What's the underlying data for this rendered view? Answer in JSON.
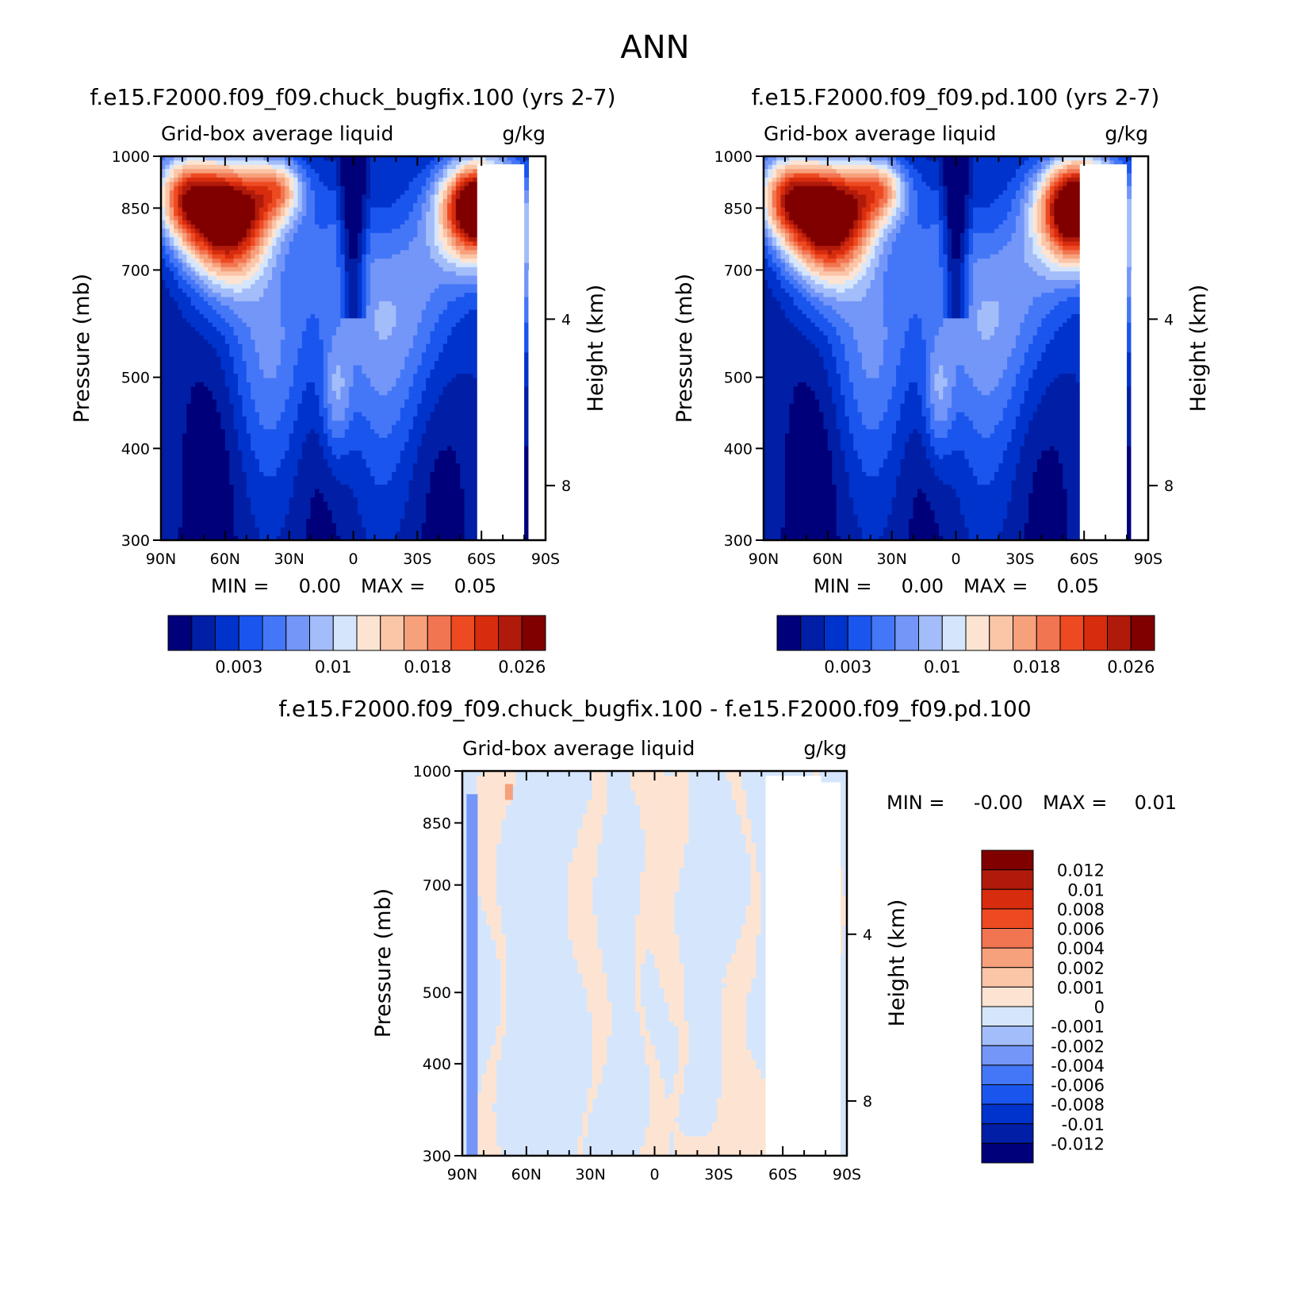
{
  "figure": {
    "title": "ANN"
  },
  "colors": {
    "abs_scale": [
      "#00007a",
      "#001fa6",
      "#0033cc",
      "#1a55ee",
      "#4477f7",
      "#7396f8",
      "#a3bdfa",
      "#d5e6fc",
      "#fde4d2",
      "#fbc5a8",
      "#f7a07c",
      "#f27551",
      "#ee4a22",
      "#d82c0e",
      "#b01a0a",
      "#800000"
    ],
    "diff_scale": [
      "#800000",
      "#b01a0a",
      "#d82c0e",
      "#ee4a22",
      "#f27551",
      "#f7a07c",
      "#fbc5a8",
      "#fde4d2",
      "#d5e6fc",
      "#a3bdfa",
      "#7396f8",
      "#4477f7",
      "#1a55ee",
      "#0033cc",
      "#001fa6",
      "#00007a"
    ]
  },
  "chart_data": [
    {
      "id": "panel_a",
      "type": "heatmap",
      "title": "f.e15.F2000.f09_f09.chuck_bugfix.100 (yrs 2-7)",
      "subtitle_left": "Grid-box average liquid",
      "subtitle_right": "g/kg",
      "ylabel": "Pressure (mb)",
      "ylabel_right": "Height (km)",
      "x_ticks": [
        "90N",
        "60N",
        "30N",
        "0",
        "30S",
        "60S",
        "90S"
      ],
      "x_tick_values": [
        90,
        60,
        30,
        0,
        -30,
        -60,
        -90
      ],
      "y_ticks": [
        "300",
        "400",
        "500",
        "700",
        "850",
        "1000"
      ],
      "y_tick_values": [
        300,
        400,
        500,
        700,
        850,
        1000
      ],
      "ylim": [
        1000,
        300
      ],
      "y_log_scale": true,
      "right_ticks": [
        "8",
        "4"
      ],
      "right_tick_pressures": [
        356,
        600
      ],
      "min_label": "MIN =",
      "min_value": "0.00",
      "max_label": "MAX =",
      "max_value": "0.05",
      "colorbar": {
        "orientation": "horizontal",
        "tick_labels": [
          "0.003",
          "0.01",
          "0.018",
          "0.026"
        ],
        "tick_boundary_index": [
          3,
          7,
          11,
          15
        ]
      },
      "blobs": [
        {
          "lat": 80,
          "p": 880,
          "sx": 14,
          "sp": 120,
          "a": 0.55
        },
        {
          "lat": 58,
          "p": 830,
          "sx": 20,
          "sp": 145,
          "a": 1.0
        },
        {
          "lat": 35,
          "p": 900,
          "sx": 12,
          "sp": 90,
          "a": 0.45
        },
        {
          "lat": -58,
          "p": 850,
          "sx": 16,
          "sp": 130,
          "a": 1.12
        },
        {
          "lat": -15,
          "p": 620,
          "sx": 30,
          "sp": 240,
          "a": 0.3
        },
        {
          "lat": 8,
          "p": 470,
          "sx": 7,
          "sp": 90,
          "a": 0.22
        },
        {
          "lat": -75,
          "p": 700,
          "sx": 10,
          "sp": 200,
          "a": 0.3
        },
        {
          "lat": 40,
          "p": 560,
          "sx": 20,
          "sp": 200,
          "a": 0.22
        }
      ]
    },
    {
      "id": "panel_b",
      "type": "heatmap",
      "title": "f.e15.F2000.f09_f09.pd.100 (yrs 2-7)",
      "subtitle_left": "Grid-box average liquid",
      "subtitle_right": "g/kg",
      "ylabel": "Pressure (mb)",
      "ylabel_right": "Height (km)",
      "x_ticks": [
        "90N",
        "60N",
        "30N",
        "0",
        "30S",
        "60S",
        "90S"
      ],
      "x_tick_values": [
        90,
        60,
        30,
        0,
        -30,
        -60,
        -90
      ],
      "y_ticks": [
        "300",
        "400",
        "500",
        "700",
        "850",
        "1000"
      ],
      "y_tick_values": [
        300,
        400,
        500,
        700,
        850,
        1000
      ],
      "ylim": [
        1000,
        300
      ],
      "y_log_scale": true,
      "right_ticks": [
        "8",
        "4"
      ],
      "right_tick_pressures": [
        356,
        600
      ],
      "min_label": "MIN =",
      "min_value": "0.00",
      "max_label": "MAX =",
      "max_value": "0.05",
      "colorbar": {
        "orientation": "horizontal",
        "tick_labels": [
          "0.003",
          "0.01",
          "0.018",
          "0.026"
        ],
        "tick_boundary_index": [
          3,
          7,
          11,
          15
        ]
      },
      "blobs": [
        {
          "lat": 80,
          "p": 880,
          "sx": 14,
          "sp": 120,
          "a": 0.55
        },
        {
          "lat": 58,
          "p": 830,
          "sx": 20,
          "sp": 145,
          "a": 1.0
        },
        {
          "lat": 35,
          "p": 900,
          "sx": 12,
          "sp": 90,
          "a": 0.45
        },
        {
          "lat": -57,
          "p": 850,
          "sx": 17,
          "sp": 135,
          "a": 1.15
        },
        {
          "lat": -15,
          "p": 620,
          "sx": 30,
          "sp": 240,
          "a": 0.3
        },
        {
          "lat": 8,
          "p": 470,
          "sx": 7,
          "sp": 90,
          "a": 0.22
        },
        {
          "lat": -75,
          "p": 700,
          "sx": 10,
          "sp": 200,
          "a": 0.3
        },
        {
          "lat": 40,
          "p": 560,
          "sx": 20,
          "sp": 200,
          "a": 0.22
        }
      ]
    },
    {
      "id": "panel_diff",
      "type": "heatmap",
      "title": "f.e15.F2000.f09_f09.chuck_bugfix.100 - f.e15.F2000.f09_f09.pd.100",
      "subtitle_left": "Grid-box average liquid",
      "subtitle_right": "g/kg",
      "ylabel": "Pressure (mb)",
      "ylabel_right": "Height (km)",
      "x_ticks": [
        "90N",
        "60N",
        "30N",
        "0",
        "30S",
        "60S",
        "90S"
      ],
      "x_tick_values": [
        90,
        60,
        30,
        0,
        -30,
        -60,
        -90
      ],
      "y_ticks": [
        "300",
        "400",
        "500",
        "700",
        "850",
        "1000"
      ],
      "y_tick_values": [
        300,
        400,
        500,
        700,
        850,
        1000
      ],
      "ylim": [
        1000,
        300
      ],
      "y_log_scale": true,
      "right_ticks": [
        "8",
        "4"
      ],
      "right_tick_pressures": [
        356,
        600
      ],
      "min_label": "MIN =",
      "min_value": "-0.00",
      "max_label": "MAX =",
      "max_value": "0.01",
      "colorbar": {
        "orientation": "vertical",
        "tick_labels": [
          "0.012",
          "0.01",
          "0.008",
          "0.006",
          "0.004",
          "0.002",
          "0.001",
          "0",
          "-0.001",
          "-0.002",
          "-0.004",
          "-0.006",
          "-0.008",
          "-0.01",
          "-0.012"
        ]
      },
      "positive_bands": [
        {
          "lat": 75,
          "w": 8
        },
        {
          "lat": 30,
          "w": 6
        },
        {
          "lat": 3,
          "w": 8
        },
        {
          "lat": -8,
          "w": 6
        },
        {
          "lat": -42,
          "w": 10
        },
        {
          "lat": -80,
          "w": 5
        }
      ]
    }
  ]
}
